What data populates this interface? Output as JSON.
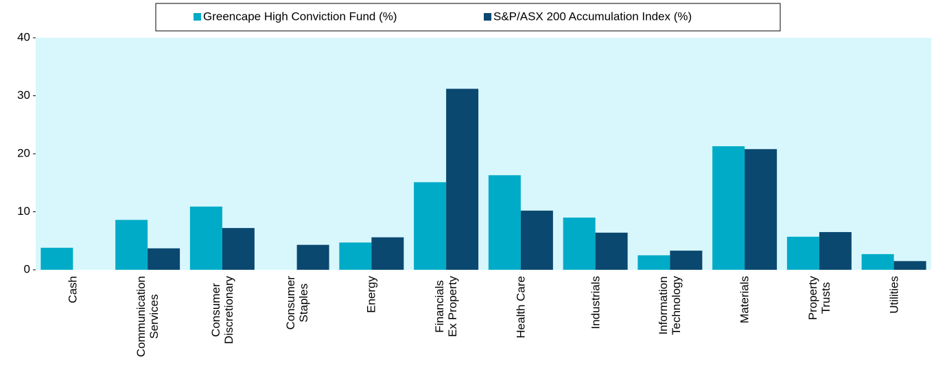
{
  "chart_data": {
    "type": "bar",
    "categories": [
      "Cash",
      "Communication\nServices",
      "Consumer\nDiscretionary",
      "Consumer\nStaples",
      "Energy",
      "Financials\nEx Property",
      "Health Care",
      "Industrials",
      "Information\nTechnology",
      "Materials",
      "Property\nTrusts",
      "Utilities"
    ],
    "series": [
      {
        "name": "Greencape High Conviction Fund (%)",
        "color": "#00abc8",
        "values": [
          3.8,
          8.6,
          10.9,
          0,
          4.7,
          15.1,
          16.3,
          9.0,
          2.5,
          21.3,
          5.7,
          2.7
        ]
      },
      {
        "name": "S&P/ASX 200 Accumulation Index (%)",
        "color": "#0b4870",
        "values": [
          0,
          3.7,
          7.2,
          4.3,
          5.6,
          31.2,
          10.2,
          6.4,
          3.3,
          20.8,
          6.5,
          1.5
        ]
      }
    ],
    "ylim": [
      0,
      40
    ],
    "yticks": [
      0,
      10,
      20,
      30,
      40
    ],
    "legend": "top",
    "background": "#d8f7fc"
  }
}
